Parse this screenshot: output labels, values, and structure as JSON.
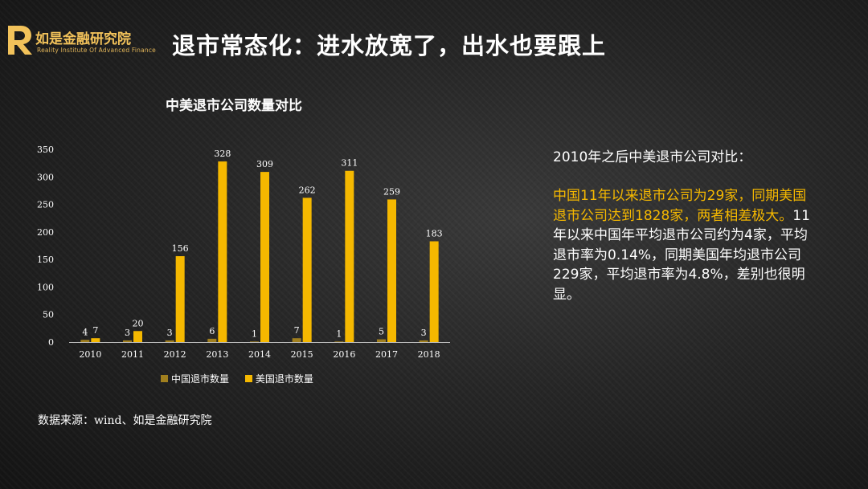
{
  "logo": {
    "name": "如是金融研究院",
    "subtitle": "Reality Institute Of Advanced Finance"
  },
  "slide_title": "退市常态化：进水放宽了，出水也要跟上",
  "colors": {
    "china": "#a07f1e",
    "usa": "#f5b800",
    "highlight": "#f5b800"
  },
  "chart_data": {
    "type": "bar",
    "title": "中美退市公司数量对比",
    "categories": [
      "2010",
      "2011",
      "2012",
      "2013",
      "2014",
      "2015",
      "2016",
      "2017",
      "2018"
    ],
    "series": [
      {
        "name": "中国退市数量",
        "values": [
          4,
          3,
          3,
          6,
          1,
          7,
          1,
          5,
          3
        ]
      },
      {
        "name": "美国退市数量",
        "values": [
          7,
          20,
          156,
          328,
          309,
          262,
          311,
          259,
          183
        ]
      }
    ],
    "yticks": [
      "0",
      "50",
      "100",
      "150",
      "200",
      "250",
      "300",
      "350"
    ],
    "ylim": [
      0,
      350
    ],
    "grid": false,
    "legend": "bottom",
    "xlabel": "",
    "ylabel": ""
  },
  "source": "数据来源：wind、如是金融研究院",
  "side": {
    "heading": "2010年之后中美退市公司对比：",
    "highlight": "中国11年以来退市公司为29家，同期美国退市公司达到1828家，两者相差极大。",
    "body": "11年以来中国年平均退市公司约为4家，平均退市率为0.14%，同期美国年均退市公司229家，平均退市率为4.8%，差别也很明显。"
  }
}
